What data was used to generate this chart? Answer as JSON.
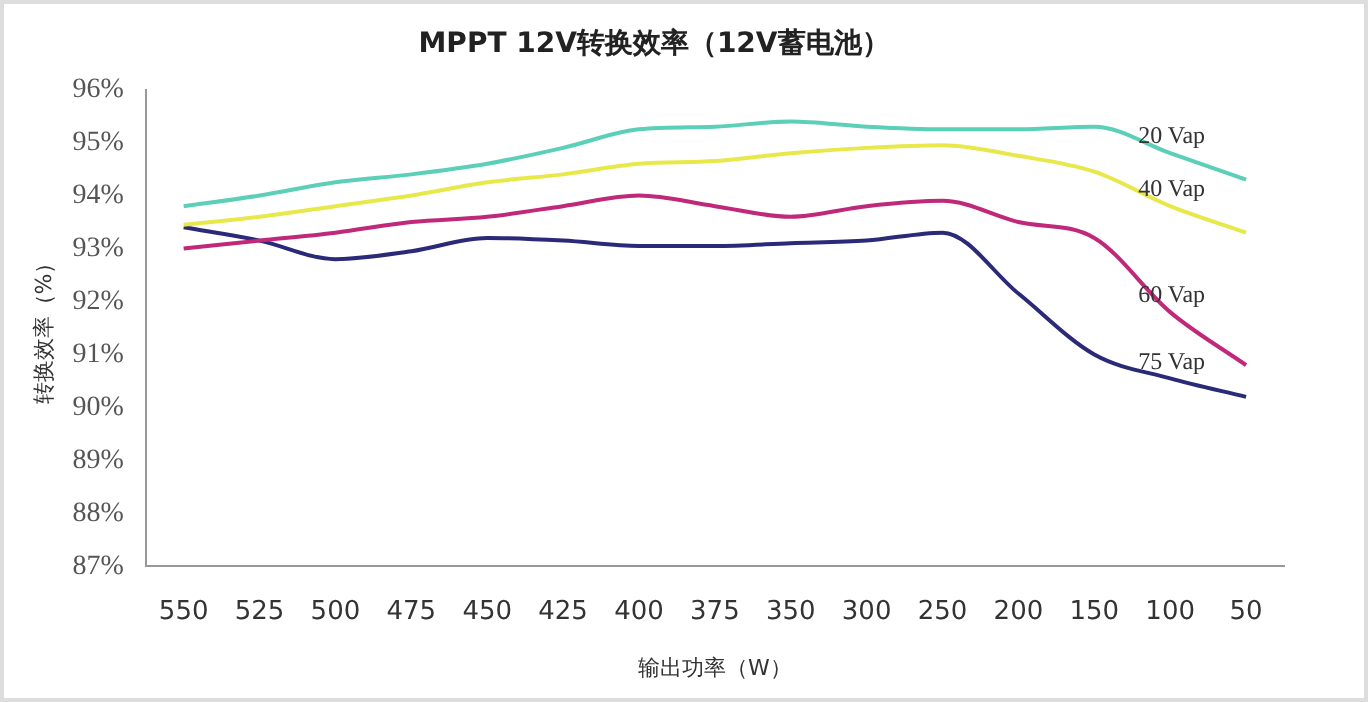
{
  "chart_data": {
    "type": "line",
    "title": "MPPT 12V转换效率（12V蓄电池）",
    "xlabel": "输出功率（W）",
    "ylabel": "转换效率（%）",
    "categories": [
      "550",
      "525",
      "500",
      "475",
      "450",
      "425",
      "400",
      "375",
      "350",
      "300",
      "250",
      "200",
      "150",
      "100",
      "50"
    ],
    "series": [
      {
        "name": "20 Vap",
        "color": "#5ccfb8",
        "values": [
          93.8,
          94.0,
          94.25,
          94.4,
          94.6,
          94.9,
          95.25,
          95.3,
          95.4,
          95.3,
          95.25,
          95.25,
          95.3,
          94.8,
          94.3
        ]
      },
      {
        "name": "40 Vap",
        "color": "#e8e84a",
        "values": [
          93.45,
          93.6,
          93.8,
          94.0,
          94.25,
          94.4,
          94.6,
          94.65,
          94.8,
          94.9,
          94.95,
          94.75,
          94.45,
          93.8,
          93.3
        ]
      },
      {
        "name": "60 Vap",
        "color": "#c0287a",
        "values": [
          93.0,
          93.15,
          93.3,
          93.5,
          93.6,
          93.8,
          94.0,
          93.8,
          93.6,
          93.8,
          93.9,
          93.5,
          93.2,
          91.8,
          90.8
        ]
      },
      {
        "name": "75 Vap",
        "color": "#2a2a78",
        "values": [
          93.4,
          93.15,
          92.8,
          92.95,
          93.2,
          93.15,
          93.05,
          93.05,
          93.1,
          93.15,
          93.3,
          92.15,
          91.0,
          90.55,
          90.2
        ]
      }
    ],
    "ylim": [
      87,
      96
    ],
    "yticks": [
      {
        "value": 87,
        "label": "87%"
      },
      {
        "value": 88,
        "label": "88%"
      },
      {
        "value": 89,
        "label": "89%"
      },
      {
        "value": 90,
        "label": "90%"
      },
      {
        "value": 91,
        "label": "91%"
      },
      {
        "value": 92,
        "label": "92%"
      },
      {
        "value": 93,
        "label": "93%"
      },
      {
        "value": 94,
        "label": "94%"
      },
      {
        "value": 95,
        "label": "95%"
      },
      {
        "value": 96,
        "label": "96%"
      }
    ],
    "grid": false,
    "legend": false,
    "marker": "none",
    "line_style": "solid"
  }
}
